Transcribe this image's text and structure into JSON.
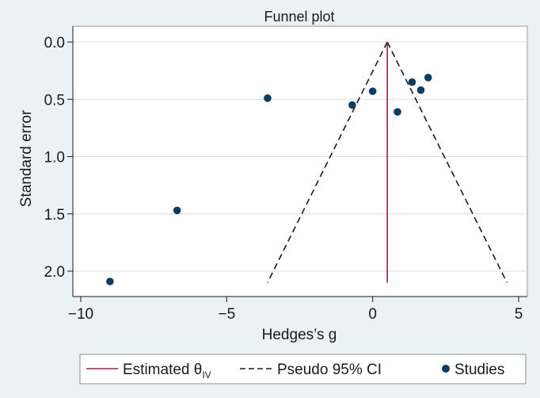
{
  "chart_data": {
    "type": "scatter",
    "title": "Funnel plot",
    "xlabel": "Hedges’s g",
    "ylabel": "Standard error",
    "xlim": [
      -10,
      5
    ],
    "ylim": [
      2.1,
      0
    ],
    "y_reversed": true,
    "grid": true,
    "legend_position": "bottom",
    "x_ticks": [
      {
        "value": -10,
        "label": "−10"
      },
      {
        "value": -5,
        "label": "−5"
      },
      {
        "value": 0,
        "label": "0"
      },
      {
        "value": 5,
        "label": "5"
      }
    ],
    "y_ticks": [
      {
        "value": 0,
        "label": "0.0"
      },
      {
        "value": 0.5,
        "label": "0.5"
      },
      {
        "value": 1,
        "label": "1.0"
      },
      {
        "value": 1.5,
        "label": "1.5"
      },
      {
        "value": 2,
        "label": "2.0"
      }
    ],
    "estimate": {
      "x": 0.5,
      "se_max": 2.1
    },
    "ci_lines": [
      {
        "x0": 0.5,
        "y0": 0,
        "x1": -3.6,
        "y1": 2.1
      },
      {
        "x0": 0.5,
        "y0": 0,
        "x1": 4.6,
        "y1": 2.1
      }
    ],
    "series": [
      {
        "name": "Studies",
        "points": [
          {
            "x": -9.0,
            "y": 2.09
          },
          {
            "x": -6.7,
            "y": 1.47
          },
          {
            "x": -3.6,
            "y": 0.49
          },
          {
            "x": -0.7,
            "y": 0.55
          },
          {
            "x": 0.0,
            "y": 0.43
          },
          {
            "x": 0.85,
            "y": 0.61
          },
          {
            "x": 1.35,
            "y": 0.35
          },
          {
            "x": 1.65,
            "y": 0.42
          },
          {
            "x": 1.9,
            "y": 0.31
          }
        ]
      }
    ],
    "legend": {
      "estimated_prefix": "Estimated θ",
      "estimated_sub": "IV",
      "pseudo": "Pseudo 95% CI",
      "studies": "Studies"
    },
    "colors": {
      "background": "#eaf2f3",
      "plot_bg": "#ffffff",
      "estimate_line": "#a01c3c",
      "ci_line": "#1a1a1a",
      "points": "#0b3d66",
      "grid": "#d9dcdf"
    }
  }
}
